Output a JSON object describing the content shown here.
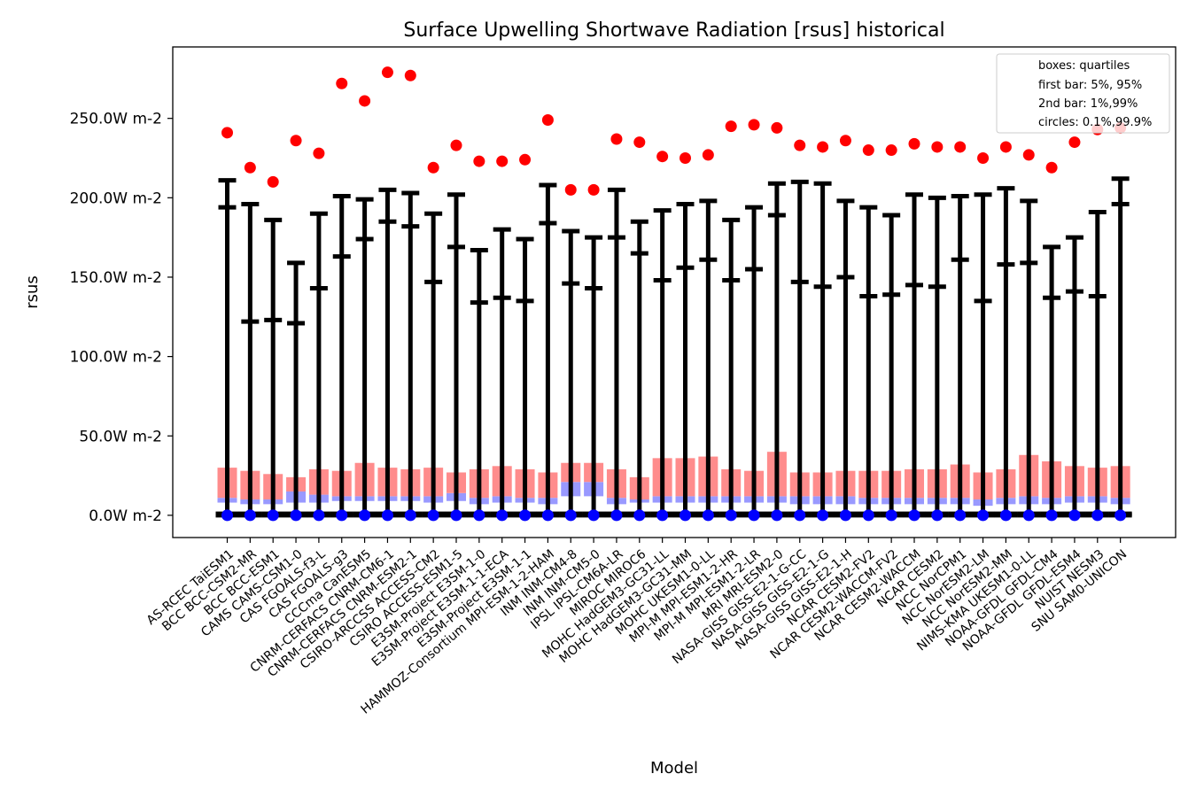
{
  "chart_data": {
    "type": "bar",
    "title": "Surface Upwelling Shortwave Radiation [rsus] historical",
    "xlabel": "Model",
    "ylabel": "rsus",
    "ylim": [
      -14,
      295
    ],
    "yticks": [
      0,
      50,
      100,
      150,
      200,
      250
    ],
    "ytick_labels": [
      "0.0W m-2",
      "50.0W m-2",
      "100.0W m-2",
      "150.0W m-2",
      "200.0W m-2",
      "250.0W m-2"
    ],
    "legend": {
      "placement": "top-right",
      "entries": [
        "boxes: quartiles",
        "first bar: 5%, 95%",
        "2nd bar: 1%,99%",
        "circles: 0.1%,99.9%"
      ]
    },
    "colors": {
      "upper_box": "#ff8c8c",
      "lower_box": "#9999ff",
      "whisker": "#000000",
      "high_circle": "#ff0000",
      "low_circle": "#0000ff"
    },
    "categories": [
      "AS-RCEC TaiESM1",
      "BCC BCC-CSM2-MR",
      "BCC BCC-ESM1",
      "CAMS CAMS-CSM1-0",
      "CAS FGOALS-f3-L",
      "CAS FGOALS-g3",
      "CCCma CanESM5",
      "CNRM-CERFACS CNRM-CM6-1",
      "CNRM-CERFACS CNRM-ESM2-1",
      "CSIRO-ARCCSS ACCESS-CM2",
      "CSIRO ACCESS-ESM1-5",
      "E3SM-Project E3SM-1-0",
      "E3SM-Project E3SM-1-1-ECA",
      "E3SM-Project E3SM-1-1",
      "HAMMOZ-Consortium MPI-ESM-1-2-HAM",
      "INM INM-CM4-8",
      "INM INM-CM5-0",
      "IPSL IPSL-CM6A-LR",
      "MIROC MIROC6",
      "MOHC HadGEM3-GC31-LL",
      "MOHC HadGEM3-GC31-MM",
      "MOHC UKESM1-0-LL",
      "MPI-M MPI-ESM1-2-HR",
      "MPI-M MPI-ESM1-2-LR",
      "MRI MRI-ESM2-0",
      "NASA-GISS GISS-E2-1-G-CC",
      "NASA-GISS GISS-E2-1-G",
      "NASA-GISS GISS-E2-1-H",
      "NCAR CESM2-FV2",
      "NCAR CESM2-WACCM-FV2",
      "NCAR CESM2-WACCM",
      "NCAR CESM2",
      "NCC NorCPM1",
      "NCC NorESM2-LM",
      "NCC NorESM2-MM",
      "NIMS-KMA UKESM1-0-LL",
      "NOAA-GFDL GFDL-CM4",
      "NOAA-GFDL GFDL-ESM4",
      "NUIST NESM3",
      "SNU SAM0-UNICON"
    ],
    "series": [
      {
        "name": "q1",
        "values": [
          8,
          7,
          7,
          8,
          8,
          9,
          9,
          9,
          9,
          8,
          9,
          7,
          8,
          8,
          7,
          12,
          12,
          7,
          8,
          8,
          8,
          8,
          8,
          8,
          8,
          7,
          7,
          7,
          7,
          7,
          7,
          7,
          7,
          6,
          7,
          7,
          7,
          8,
          8,
          7
        ]
      },
      {
        "name": "median",
        "values": [
          11,
          10,
          10,
          15,
          13,
          12,
          12,
          12,
          12,
          12,
          14,
          11,
          12,
          11,
          11,
          21,
          21,
          11,
          10,
          12,
          12,
          12,
          12,
          12,
          12,
          12,
          12,
          12,
          11,
          11,
          11,
          11,
          11,
          10,
          11,
          12,
          11,
          12,
          12,
          11
        ]
      },
      {
        "name": "q3",
        "values": [
          30,
          28,
          26,
          24,
          29,
          28,
          33,
          30,
          29,
          30,
          27,
          29,
          31,
          29,
          27,
          33,
          33,
          29,
          24,
          36,
          36,
          37,
          29,
          28,
          40,
          27,
          27,
          28,
          28,
          28,
          29,
          29,
          32,
          27,
          29,
          38,
          34,
          31,
          30,
          31
        ]
      },
      {
        "name": "p1",
        "values": [
          0,
          0,
          0,
          0,
          0,
          0,
          0,
          0,
          0,
          0,
          0,
          0,
          0,
          0,
          0,
          0,
          0,
          0,
          0,
          0,
          0,
          0,
          0,
          0,
          0,
          0,
          0,
          0,
          0,
          0,
          0,
          0,
          0,
          0,
          0,
          0,
          0,
          0,
          0,
          0
        ]
      },
      {
        "name": "p5",
        "values": [
          1,
          1,
          1,
          1,
          1,
          1,
          1,
          1,
          1,
          1,
          1,
          1,
          1,
          1,
          1,
          1,
          1,
          1,
          1,
          1,
          1,
          1,
          1,
          1,
          1,
          1,
          1,
          1,
          1,
          1,
          1,
          1,
          1,
          1,
          1,
          1,
          1,
          1,
          1,
          1
        ]
      },
      {
        "name": "p95",
        "values": [
          194,
          122,
          123,
          121,
          143,
          163,
          174,
          185,
          182,
          147,
          169,
          134,
          137,
          135,
          184,
          146,
          143,
          175,
          165,
          148,
          156,
          161,
          148,
          155,
          189,
          147,
          144,
          150,
          138,
          139,
          145,
          144,
          161,
          135,
          158,
          159,
          137,
          141,
          138,
          196
        ]
      },
      {
        "name": "p99",
        "values": [
          211,
          196,
          186,
          159,
          190,
          201,
          199,
          205,
          203,
          190,
          202,
          167,
          180,
          174,
          208,
          179,
          175,
          205,
          185,
          192,
          196,
          198,
          186,
          194,
          209,
          210,
          209,
          198,
          194,
          189,
          202,
          200,
          201,
          202,
          206,
          198,
          169,
          175,
          191,
          212
        ]
      },
      {
        "name": "p0.1",
        "values": [
          0,
          0,
          0,
          0,
          0,
          0,
          0,
          0,
          0,
          0,
          0,
          0,
          0,
          0,
          0,
          0,
          0,
          0,
          0,
          0,
          0,
          0,
          0,
          0,
          0,
          0,
          0,
          0,
          0,
          0,
          0,
          0,
          0,
          0,
          0,
          0,
          0,
          0,
          0,
          0
        ]
      },
      {
        "name": "p99.9",
        "values": [
          241,
          219,
          210,
          236,
          228,
          272,
          261,
          279,
          277,
          219,
          233,
          223,
          223,
          224,
          249,
          205,
          205,
          237,
          235,
          226,
          225,
          227,
          245,
          246,
          244,
          233,
          232,
          236,
          230,
          230,
          234,
          232,
          232,
          225,
          232,
          227,
          219,
          235,
          243,
          244
        ]
      }
    ]
  }
}
